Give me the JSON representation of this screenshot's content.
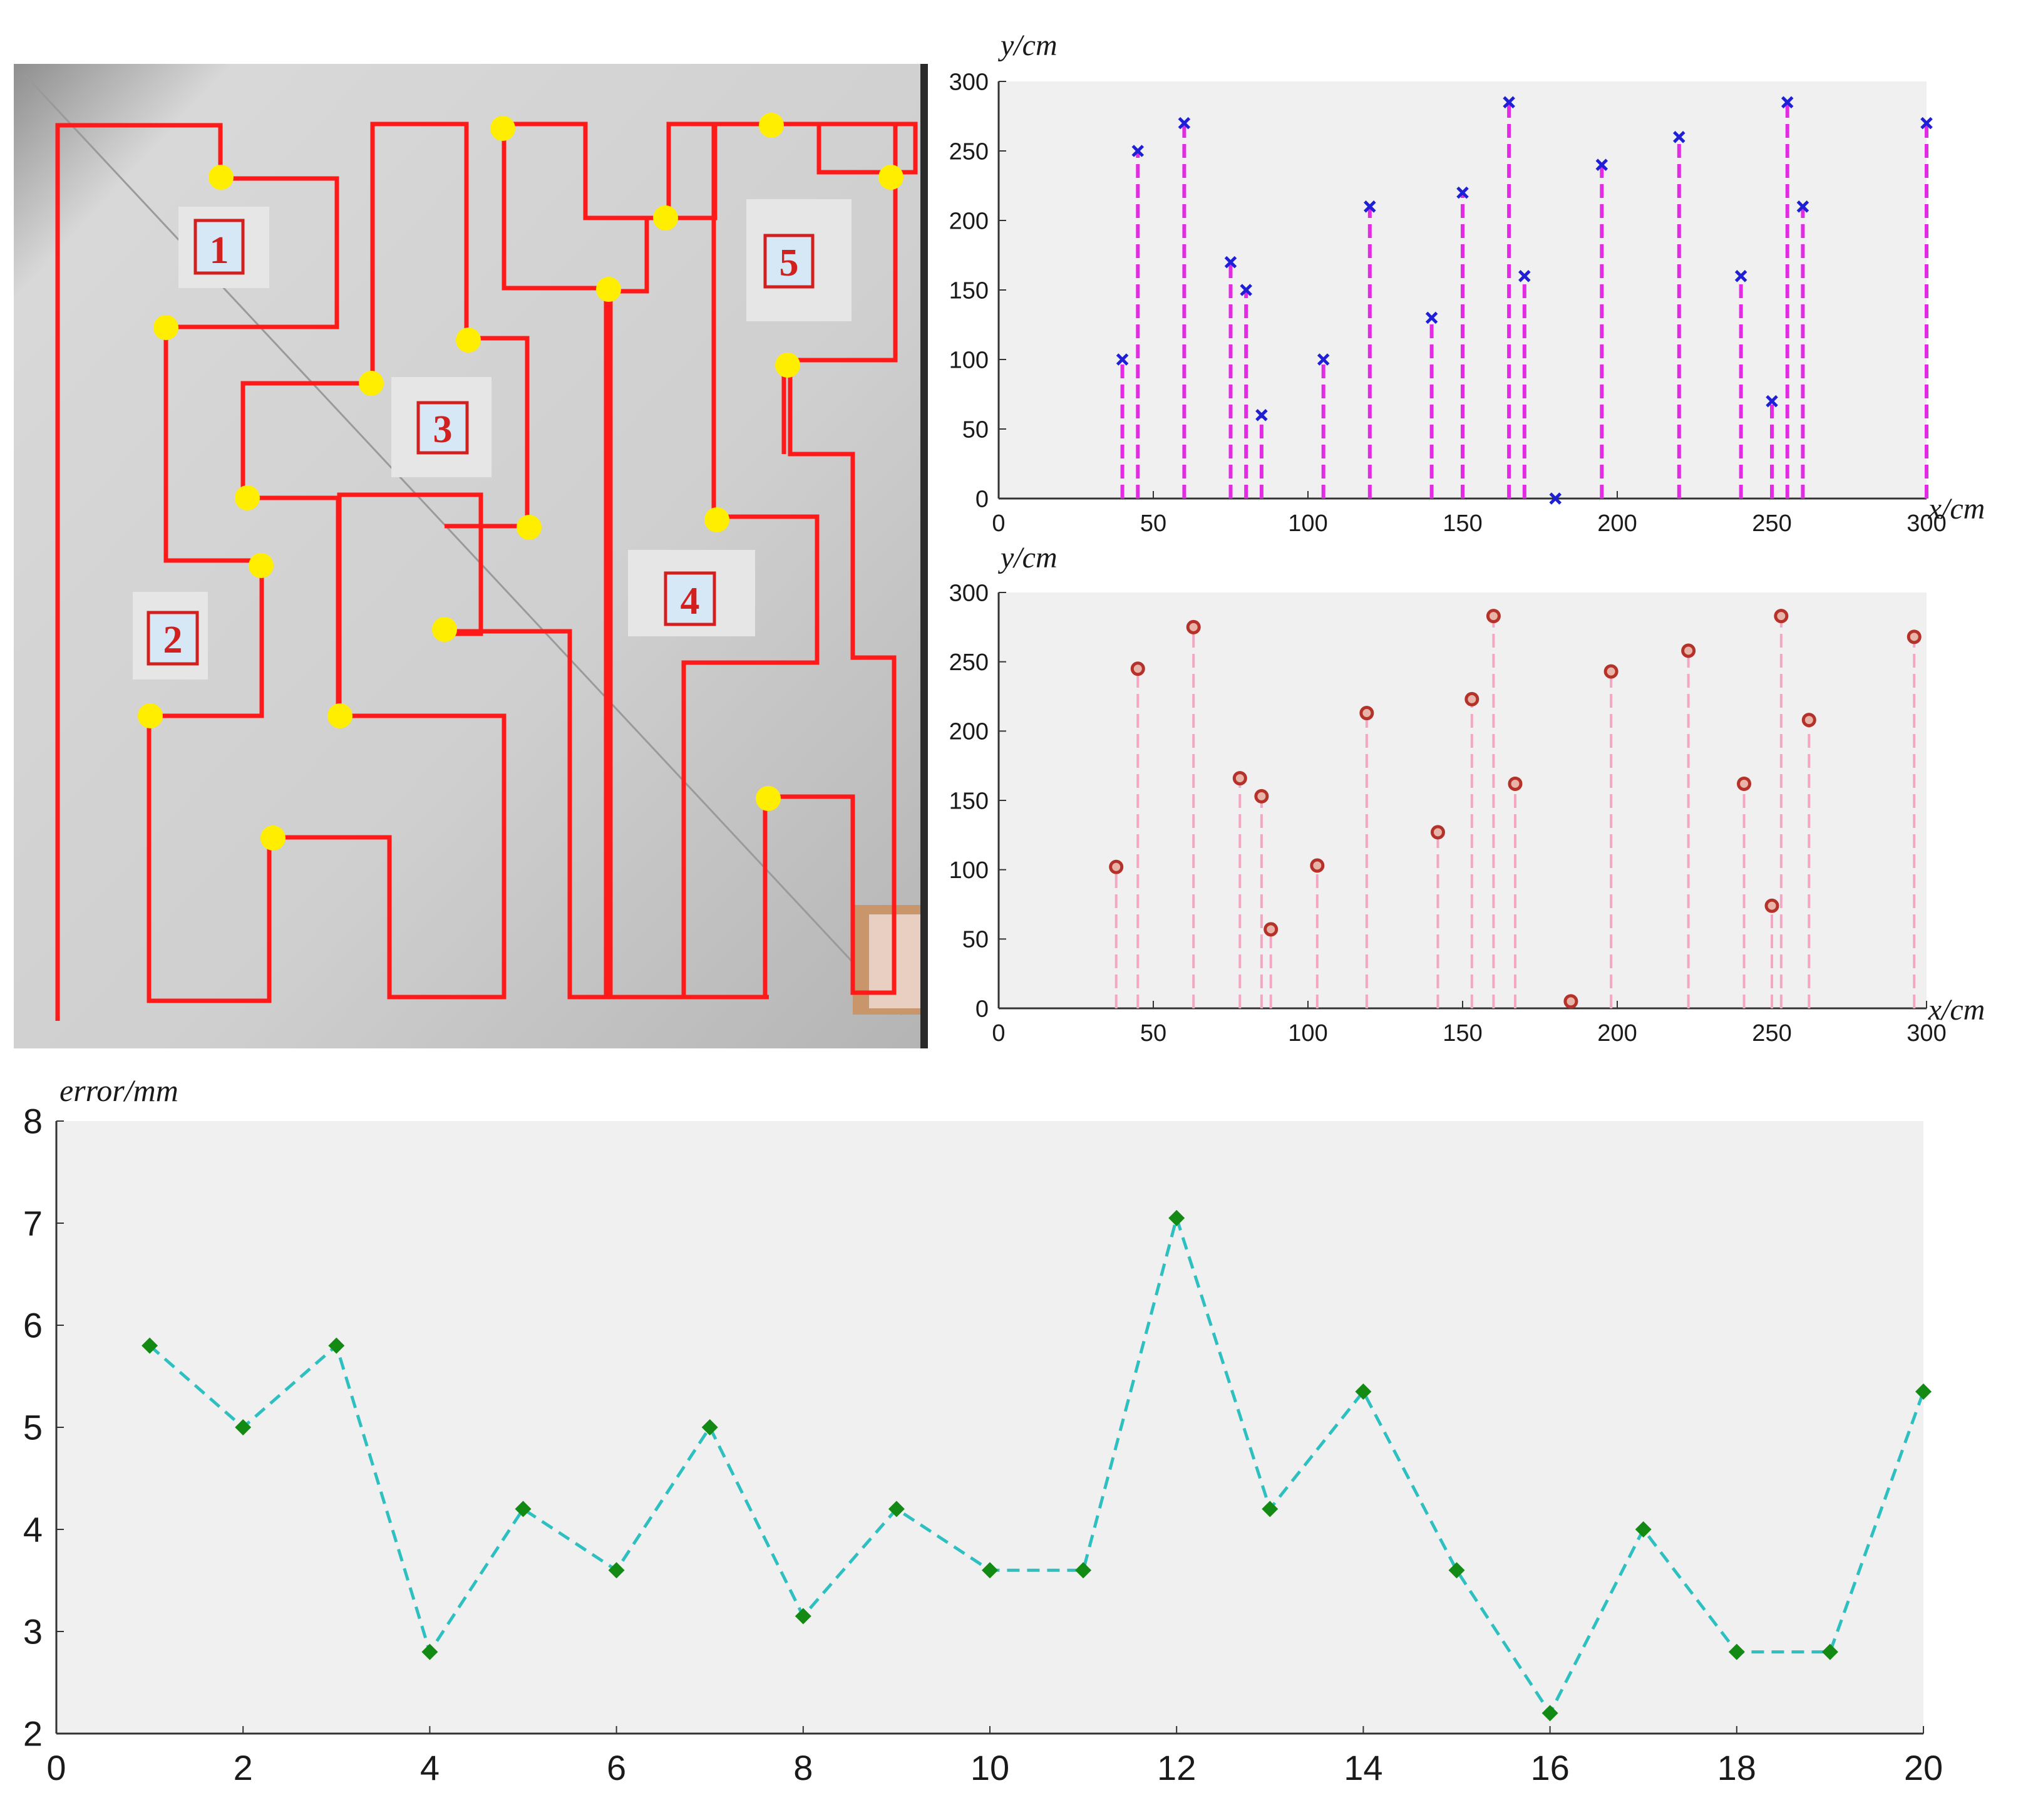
{
  "photo": {
    "boxes": [
      {
        "label": "1"
      },
      {
        "label": "2"
      },
      {
        "label": "3"
      },
      {
        "label": "4"
      },
      {
        "label": "5"
      }
    ],
    "colors": {
      "path": "#ff1a1a",
      "waypoint": "#ffee00",
      "floor": "#cfcfcf"
    }
  },
  "chart_data": [
    {
      "type": "scatter",
      "marker": "x",
      "stems": true,
      "xlabel": "x/cm",
      "ylabel": "y/cm",
      "xlim": [
        0,
        300
      ],
      "ylim": [
        0,
        300
      ],
      "xticks": [
        0,
        50,
        100,
        150,
        200,
        250,
        300
      ],
      "yticks": [
        0,
        50,
        100,
        150,
        200,
        250,
        300
      ],
      "colors": {
        "marker": "#1f1fd6",
        "stem": "#e32be3",
        "background": "#f0f0f0"
      },
      "points": [
        {
          "x": 40,
          "y": 100
        },
        {
          "x": 45,
          "y": 250
        },
        {
          "x": 60,
          "y": 270
        },
        {
          "x": 75,
          "y": 170
        },
        {
          "x": 80,
          "y": 150
        },
        {
          "x": 85,
          "y": 60
        },
        {
          "x": 105,
          "y": 100
        },
        {
          "x": 120,
          "y": 210
        },
        {
          "x": 140,
          "y": 130
        },
        {
          "x": 150,
          "y": 220
        },
        {
          "x": 165,
          "y": 285
        },
        {
          "x": 170,
          "y": 160
        },
        {
          "x": 180,
          "y": 0
        },
        {
          "x": 195,
          "y": 240
        },
        {
          "x": 220,
          "y": 260
        },
        {
          "x": 240,
          "y": 160
        },
        {
          "x": 250,
          "y": 70
        },
        {
          "x": 255,
          "y": 285
        },
        {
          "x": 260,
          "y": 210
        },
        {
          "x": 300,
          "y": 270
        }
      ]
    },
    {
      "type": "scatter",
      "marker": "o",
      "stems": true,
      "xlabel": "x/cm",
      "ylabel": "y/cm",
      "xlim": [
        0,
        300
      ],
      "ylim": [
        0,
        300
      ],
      "xticks": [
        0,
        50,
        100,
        150,
        200,
        250,
        300
      ],
      "yticks": [
        0,
        50,
        100,
        150,
        200,
        250,
        300
      ],
      "colors": {
        "marker": "#b5322a",
        "stem": "#f4a6c4",
        "background": "#f0f0f0"
      },
      "points": [
        {
          "x": 38,
          "y": 102
        },
        {
          "x": 45,
          "y": 245
        },
        {
          "x": 63,
          "y": 275
        },
        {
          "x": 78,
          "y": 166
        },
        {
          "x": 85,
          "y": 153
        },
        {
          "x": 88,
          "y": 57
        },
        {
          "x": 103,
          "y": 103
        },
        {
          "x": 119,
          "y": 213
        },
        {
          "x": 142,
          "y": 127
        },
        {
          "x": 153,
          "y": 223
        },
        {
          "x": 160,
          "y": 283
        },
        {
          "x": 167,
          "y": 162
        },
        {
          "x": 185,
          "y": 5
        },
        {
          "x": 198,
          "y": 243
        },
        {
          "x": 223,
          "y": 258
        },
        {
          "x": 241,
          "y": 162
        },
        {
          "x": 250,
          "y": 74
        },
        {
          "x": 253,
          "y": 283
        },
        {
          "x": 262,
          "y": 208
        },
        {
          "x": 296,
          "y": 268
        }
      ]
    },
    {
      "type": "line",
      "marker": "diamond",
      "linestyle": "dashed",
      "xlabel": "",
      "ylabel": "error/mm",
      "xlim": [
        0,
        20
      ],
      "ylim": [
        2,
        8
      ],
      "xticks": [
        0,
        2,
        4,
        6,
        8,
        10,
        12,
        14,
        16,
        18,
        20
      ],
      "yticks": [
        2,
        3,
        4,
        5,
        6,
        7,
        8
      ],
      "colors": {
        "marker": "#138a13",
        "line": "#2ec0c0",
        "background": "#f0f0f0"
      },
      "x": [
        1,
        2,
        3,
        4,
        5,
        6,
        7,
        8,
        9,
        10,
        11,
        12,
        13,
        14,
        15,
        16,
        17,
        18,
        19,
        20
      ],
      "y": [
        5.8,
        5.0,
        5.8,
        2.8,
        4.2,
        3.6,
        5.0,
        3.15,
        4.2,
        3.6,
        3.6,
        7.05,
        4.2,
        5.35,
        3.6,
        2.2,
        4.0,
        2.8,
        2.8,
        5.35
      ]
    }
  ]
}
